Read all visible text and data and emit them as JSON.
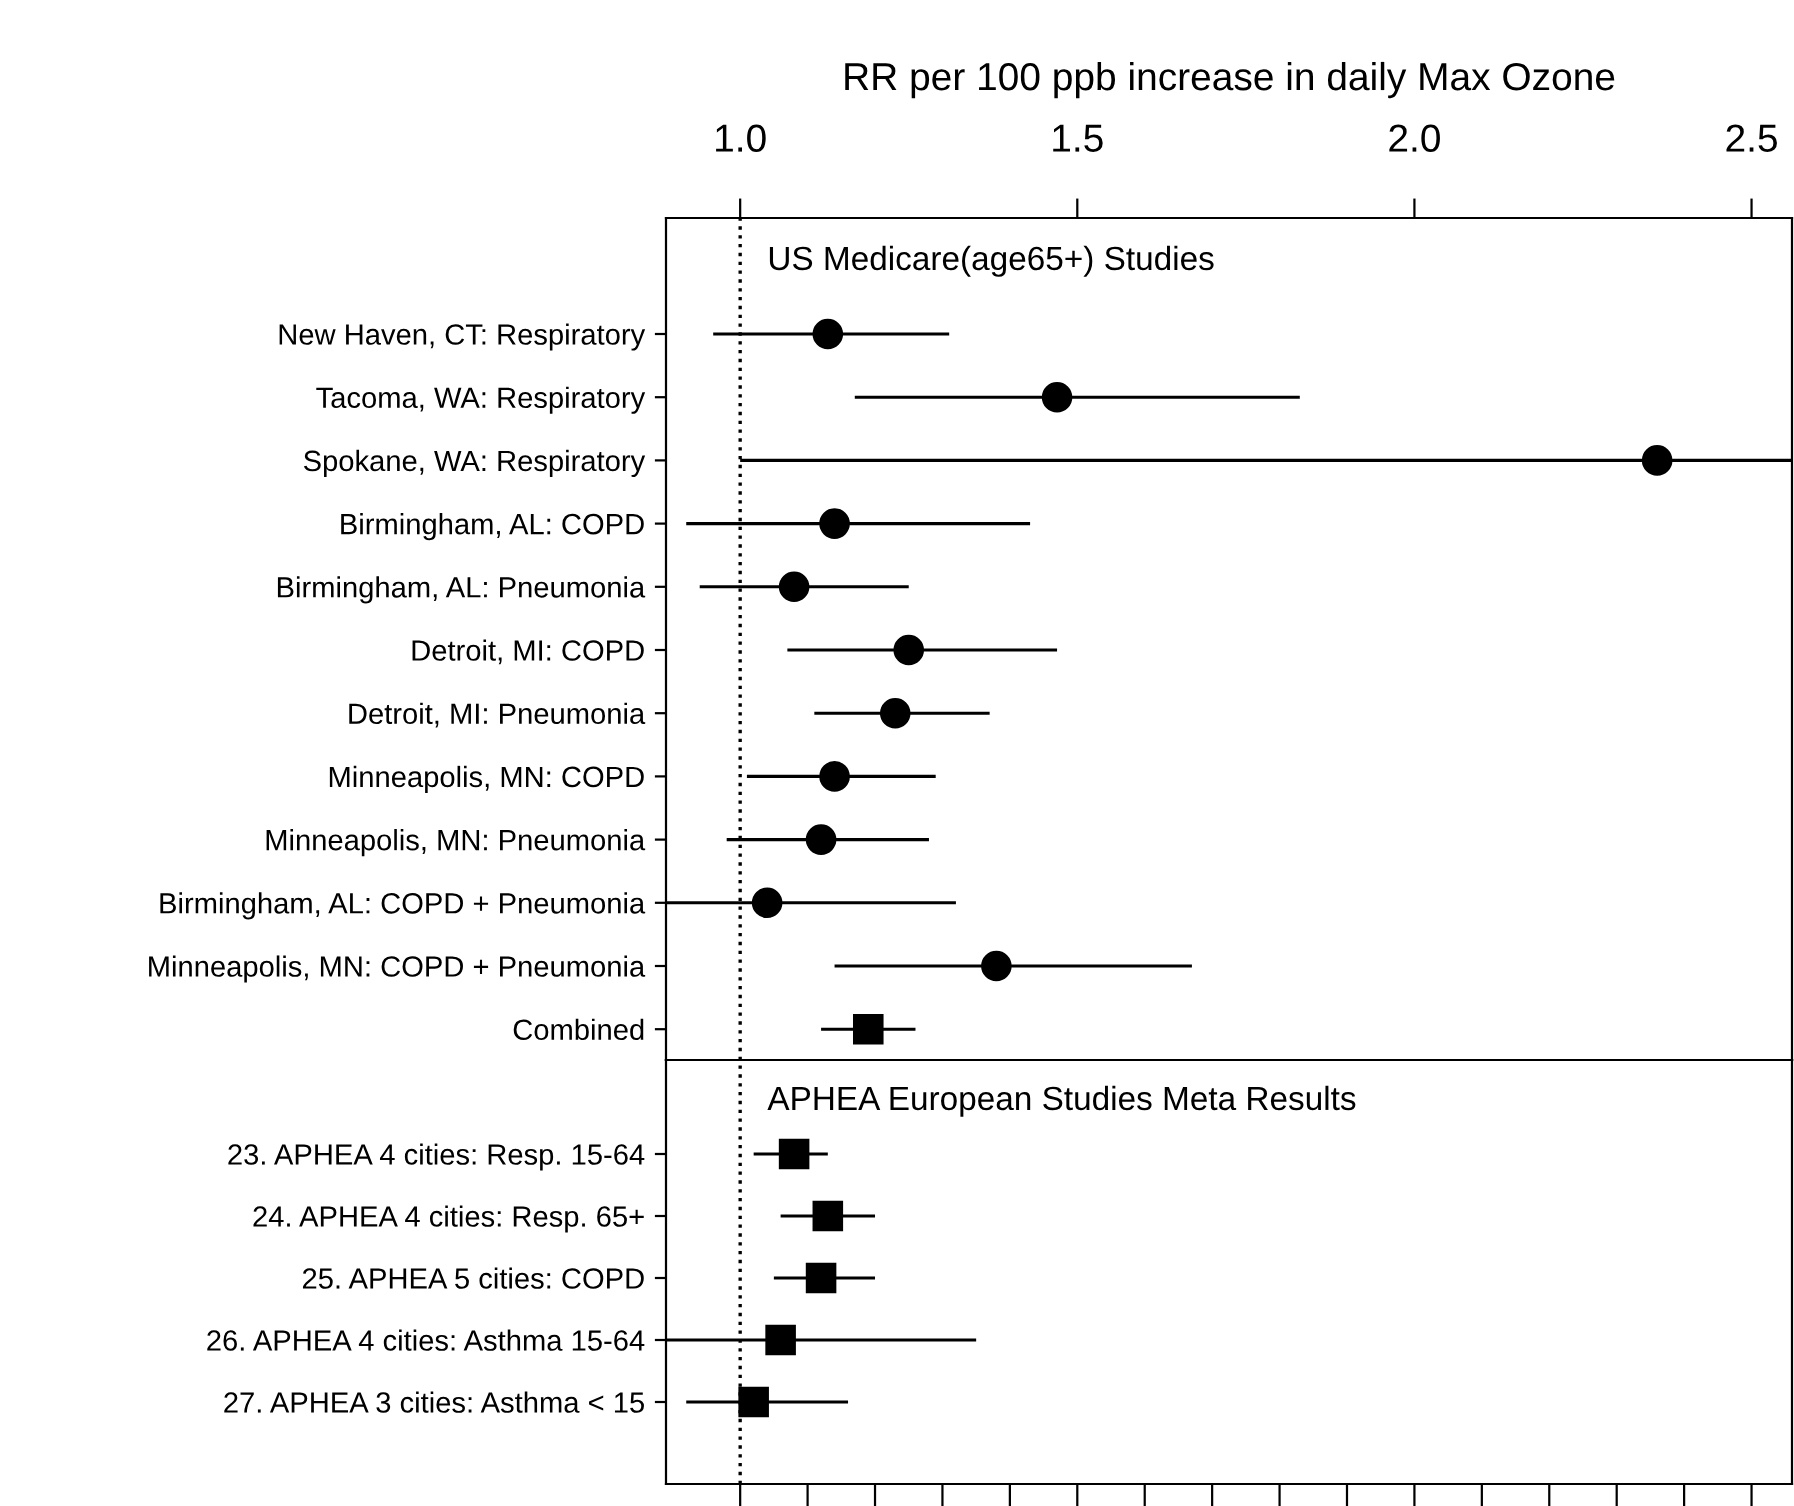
{
  "chart_data": [
    {
      "type": "scatter",
      "orientation": "horizontal",
      "title": "US Medicare(age65+) Studies",
      "xlabel": "RR per 100 ppb increase in daily Max Ozone",
      "categories": [
        "New Haven, CT: Respiratory",
        "Tacoma, WA: Respiratory",
        "Spokane, WA: Respiratory",
        "Birmingham, AL: COPD",
        "Birmingham, AL: Pneumonia",
        "Detroit, MI: COPD",
        "Detroit, MI: Pneumonia",
        "Minneapolis, MN: COPD",
        "Minneapolis, MN: Pneumonia",
        "Birmingham, AL: COPD + Pneumonia",
        "Minneapolis, MN: COPD + Pneumonia",
        "Combined"
      ],
      "series": [
        {
          "color": "#000000",
          "marker": "circle",
          "values": [
            1.13,
            1.47,
            2.36,
            1.14,
            1.08,
            1.25,
            1.23,
            1.14,
            1.12,
            1.04,
            1.38,
            null
          ],
          "errors": [
            [
              0.96,
              1.31
            ],
            [
              1.17,
              1.83
            ],
            [
              1.0,
              2.56
            ],
            [
              0.92,
              1.43
            ],
            [
              0.94,
              1.25
            ],
            [
              1.07,
              1.47
            ],
            [
              1.11,
              1.37
            ],
            [
              1.01,
              1.29
            ],
            [
              0.98,
              1.28
            ],
            [
              0.89,
              1.32
            ],
            [
              1.14,
              1.67
            ],
            null
          ]
        },
        {
          "color": "#000000",
          "marker": "square",
          "values": [
            null,
            null,
            null,
            null,
            null,
            null,
            null,
            null,
            null,
            null,
            null,
            1.19
          ],
          "errors": [
            null,
            null,
            null,
            null,
            null,
            null,
            null,
            null,
            null,
            null,
            null,
            [
              1.12,
              1.26
            ]
          ]
        }
      ],
      "xlim": [
        0.89,
        2.56
      ],
      "xticks": [
        {
          "value": 1.0,
          "label": "1.0"
        },
        {
          "value": 1.5,
          "label": "1.5"
        },
        {
          "value": 2.0,
          "label": "2.0"
        },
        {
          "value": 2.5,
          "label": "2.5"
        }
      ],
      "ref_lines": [
        {
          "axis": "x",
          "value": 1.0,
          "line_style": "dotted",
          "color": "#000000"
        }
      ],
      "grid": false,
      "legend": false
    },
    {
      "type": "scatter",
      "orientation": "horizontal",
      "title": "APHEA European Studies Meta Results",
      "categories": [
        "23. APHEA 4 cities: Resp. 15-64",
        "24. APHEA 4 cities: Resp. 65+",
        "25. APHEA 5 cities: COPD",
        "26. APHEA 4 cities: Asthma 15-64",
        "27. APHEA 3 cities: Asthma < 15"
      ],
      "series": [
        {
          "color": "#000000",
          "marker": "square",
          "values": [
            1.08,
            1.13,
            1.12,
            1.06,
            1.02
          ],
          "errors": [
            [
              1.02,
              1.13
            ],
            [
              1.06,
              1.2
            ],
            [
              1.05,
              1.2
            ],
            [
              0.89,
              1.35
            ],
            [
              0.92,
              1.16
            ]
          ]
        }
      ],
      "xlim": [
        0.89,
        2.56
      ],
      "xticks": [
        {
          "value": 1.0,
          "label": null
        },
        {
          "value": 1.1,
          "label": null
        },
        {
          "value": 1.2,
          "label": null
        },
        {
          "value": 1.3,
          "label": null
        },
        {
          "value": 1.4,
          "label": null
        },
        {
          "value": 1.5,
          "label": null
        },
        {
          "value": 1.6,
          "label": null
        },
        {
          "value": 1.7,
          "label": null
        },
        {
          "value": 1.8,
          "label": null
        },
        {
          "value": 1.9,
          "label": null
        },
        {
          "value": 2.0,
          "label": null
        },
        {
          "value": 2.1,
          "label": null
        },
        {
          "value": 2.2,
          "label": null
        },
        {
          "value": 2.3,
          "label": null
        },
        {
          "value": 2.4,
          "label": null
        },
        {
          "value": 2.5,
          "label": null
        }
      ],
      "ref_lines": [
        {
          "axis": "x",
          "value": 1.0,
          "line_style": "dotted",
          "color": "#000000"
        }
      ],
      "tick_labels": "y",
      "grid": false,
      "legend": false
    }
  ]
}
